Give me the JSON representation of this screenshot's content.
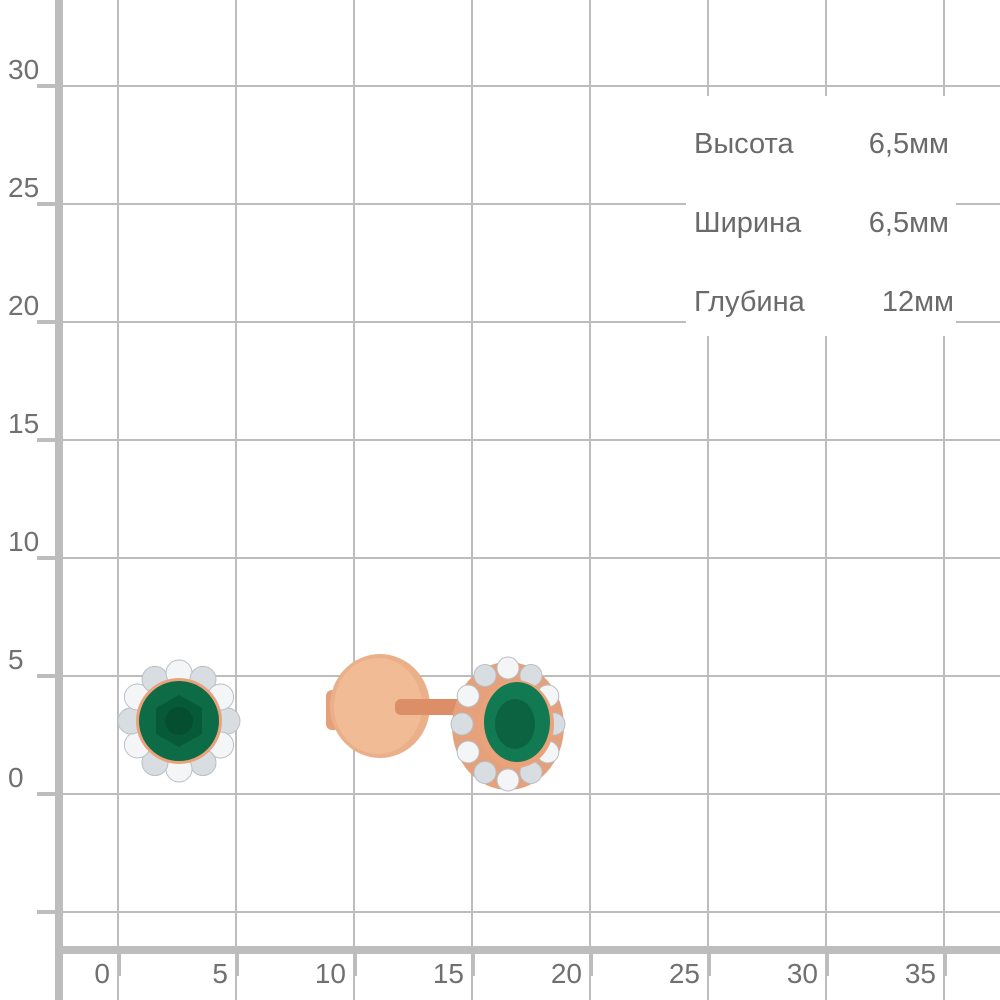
{
  "axes": {
    "y_ticks": [
      "30",
      "25",
      "20",
      "15",
      "10",
      "5",
      "0"
    ],
    "x_ticks": [
      "0",
      "5",
      "10",
      "15",
      "20",
      "25",
      "30",
      "35"
    ],
    "grid_color": "#bdbdbd",
    "label_color": "#707070"
  },
  "specs": [
    {
      "label": "Высота",
      "value": "6,5мм"
    },
    {
      "label": "Ширина",
      "value": "6,5мм"
    },
    {
      "label": "Глубина",
      "value": "12мм"
    }
  ],
  "product": {
    "type": "stud earrings",
    "stone_color": "#0d6b45",
    "metal_color": "#e9a27a",
    "accent_stone_color": "#e8ecef"
  }
}
